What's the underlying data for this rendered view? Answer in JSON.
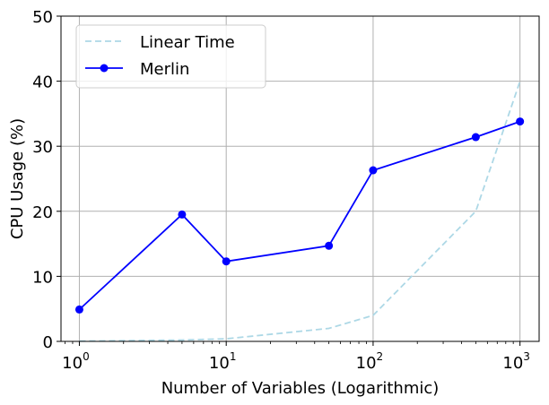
{
  "chart_data": {
    "type": "line",
    "title": "",
    "xlabel": "Number of Variables (Logarithmic)",
    "ylabel": "CPU Usage (%)",
    "xscale": "log",
    "xlim": [
      0.75,
      1350
    ],
    "ylim": [
      0,
      50
    ],
    "grid": true,
    "legend_position": "top-left",
    "y_ticks": [
      0,
      10,
      20,
      30,
      40,
      50
    ],
    "x_ticks": [
      {
        "value": 1,
        "base": "10",
        "exp": "0"
      },
      {
        "value": 10,
        "base": "10",
        "exp": "1"
      },
      {
        "value": 100,
        "base": "10",
        "exp": "2"
      },
      {
        "value": 1000,
        "base": "10",
        "exp": "3"
      }
    ],
    "series": [
      {
        "name": "Linear Time",
        "style": "dashed",
        "marker": "none",
        "color": "#add8e6",
        "x": [
          1,
          5,
          10,
          50,
          100,
          500,
          1000
        ],
        "y": [
          0.04,
          0.2,
          0.4,
          2,
          4,
          20,
          40
        ]
      },
      {
        "name": "Merlin",
        "style": "solid",
        "marker": "circle",
        "color": "#0000ff",
        "x": [
          1,
          5,
          10,
          50,
          100,
          500,
          1000
        ],
        "y": [
          4.9,
          19.5,
          12.3,
          14.7,
          26.3,
          31.4,
          33.8
        ]
      }
    ]
  }
}
